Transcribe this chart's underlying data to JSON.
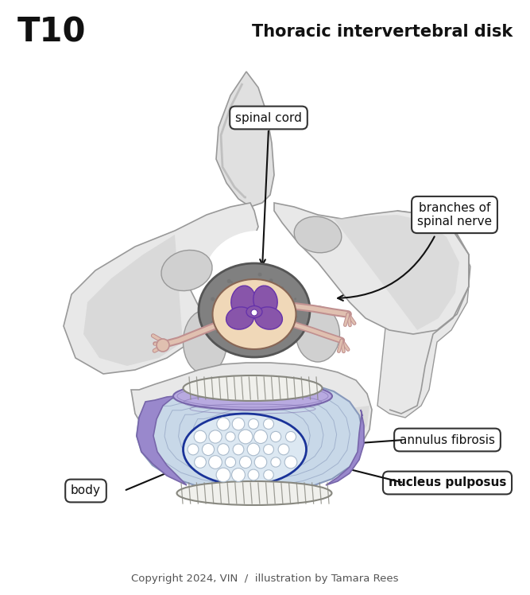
{
  "title": "Thoracic intervertebral disk",
  "vertebra_label": "T10",
  "copyright": "Copyright 2024, VIN  /  illustration by Tamara Rees",
  "labels": {
    "spinal_cord": "spinal cord",
    "branches": "branches of\nspinal nerve",
    "annulus": "annulus fibrosis",
    "nucleus": "nucleus pulposus",
    "body": "body"
  },
  "colors": {
    "background": "#ffffff",
    "bone_light": "#e8e8e8",
    "bone_mid": "#d0d0d0",
    "bone_dark": "#b8b8b8",
    "bone_edge": "#999999",
    "bone_shadow": "#c0c0c0",
    "spinous_light": "#e0e0e0",
    "spinous_dark": "#c8c8c8",
    "disc_blue_light": "#c8d8e8",
    "disc_blue_mid": "#b8cce0",
    "disc_blue_dark": "#a8bcd4",
    "disc_line": "#8899bb",
    "annulus_border": "#1a3399",
    "nucleus_fill": "#ffffff",
    "nucleus_grid": "#aabbcc",
    "endplate_fill": "#f0f0ec",
    "endplate_line": "#888880",
    "sc_dura": "#888888",
    "sc_dura_dark": "#666666",
    "sc_tissue": "#f0d8b8",
    "sc_tissue_edge": "#c8a080",
    "gm_purple": "#8855aa",
    "gm_dark": "#6633aa",
    "nerve_outer": "#c09090",
    "nerve_inner": "#e0c0b0",
    "nerve_brown": "#886655",
    "ganglion": "#d4b8a8",
    "ligament_purple": "#9988cc",
    "ligament_dark": "#7766aa",
    "ligament_light": "#b8aae0",
    "label_edge": "#333333",
    "arrow_color": "#111111",
    "title_color": "#111111",
    "copyright_color": "#555555"
  },
  "figsize": [
    6.67,
    7.48
  ],
  "dpi": 100
}
